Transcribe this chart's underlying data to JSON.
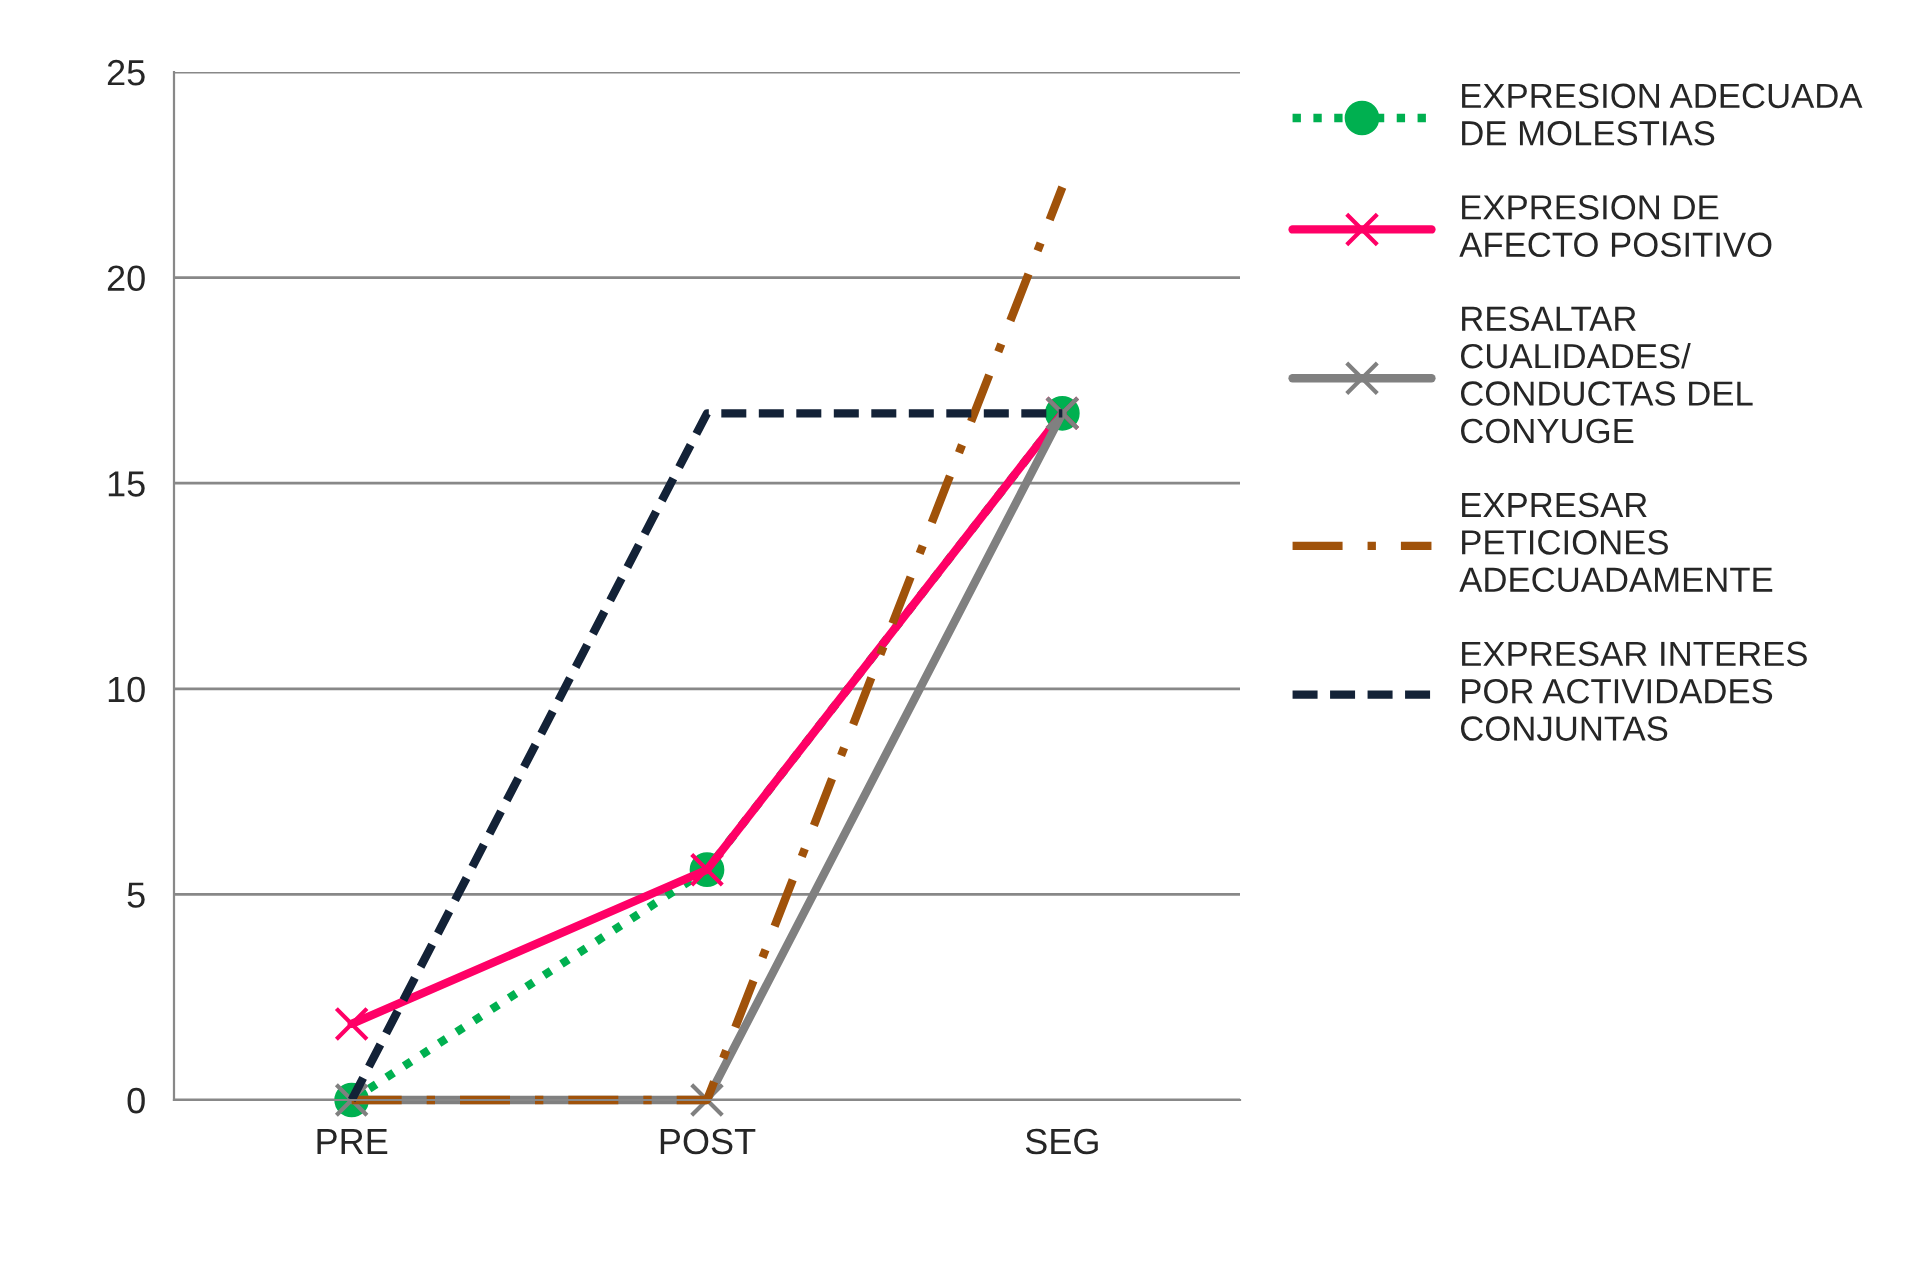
{
  "chart_data": {
    "type": "line",
    "categories": [
      "PRE",
      "POST",
      "SEG"
    ],
    "series": [
      {
        "name": "EXPRESION ADECUADA DE MOLESTIAS",
        "color": "#00b050",
        "values": [
          0,
          5.6,
          16.7
        ],
        "line_style": "dotted",
        "marker": "circle"
      },
      {
        "name": "EXPRESION DE AFECTO POSITIVO",
        "color": "#ff0066",
        "values": [
          1.85,
          5.6,
          16.7
        ],
        "line_style": "solid",
        "marker": "cross"
      },
      {
        "name": "RESALTAR CUALIDADES/ CONDUCTAS DEL CONYUGE",
        "color": "#808080",
        "values": [
          0,
          0,
          16.7
        ],
        "line_style": "solid",
        "marker": "cross"
      },
      {
        "name": "EXPRESAR PETICIONES ADECUADAMENTE",
        "color": "#a0520a",
        "values": [
          0,
          0,
          22.2
        ],
        "line_style": "dashdot",
        "marker": "none"
      },
      {
        "name": "EXPRESAR INTERES POR ACTIVIDADES CONJUNTAS",
        "color": "#132237",
        "values": [
          0,
          16.7,
          16.7
        ],
        "line_style": "dashed",
        "marker": "none"
      }
    ],
    "ylim": [
      0,
      25
    ],
    "yticks": [
      0,
      5,
      10,
      15,
      20,
      25
    ],
    "grid": "y",
    "legend": "right"
  }
}
